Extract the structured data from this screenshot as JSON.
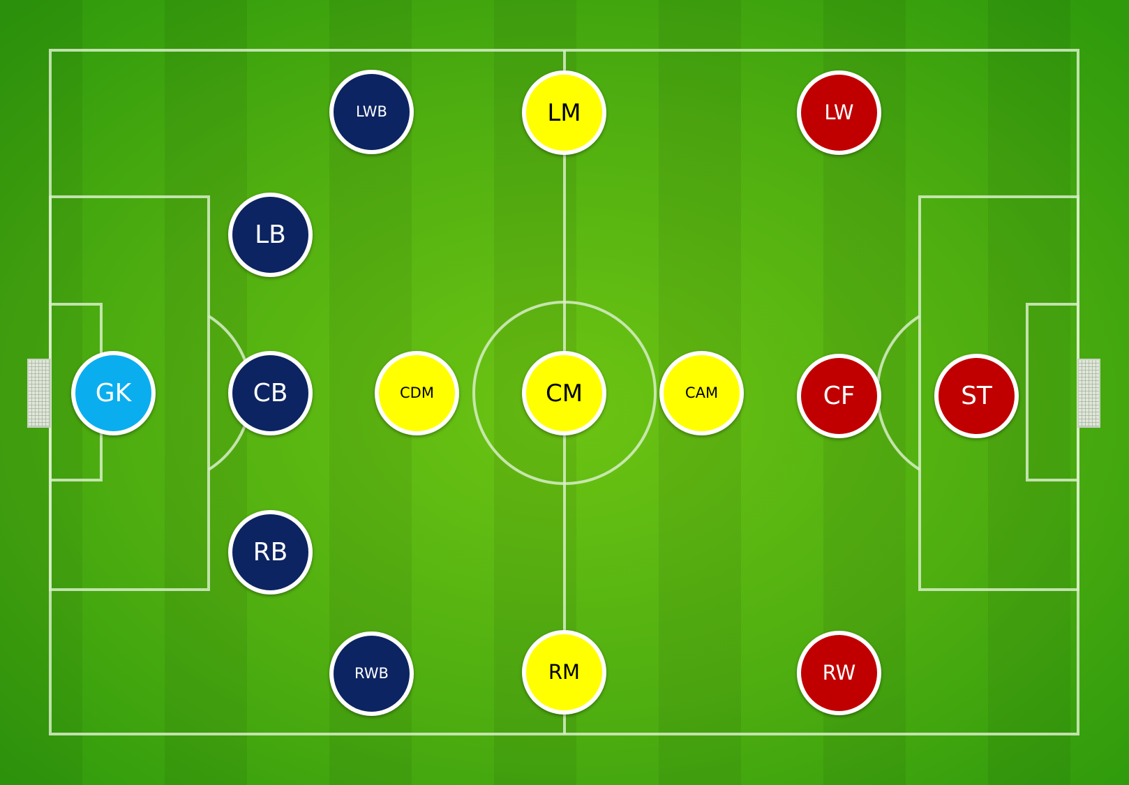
{
  "pitch": {
    "grass_light": "#6cc413",
    "grass_dark": "#2e9a0c",
    "line_color": "#d8eec8"
  },
  "team_colors": {
    "goalkeeper": "#0aaeef",
    "defence": "#0c2461",
    "midfield": "#ffff00",
    "attack": "#c00000"
  },
  "positions": [
    {
      "id": "gk",
      "label": "GK",
      "role": "goalkeeper",
      "text_color": "#ffffff"
    },
    {
      "id": "lwb",
      "label": "LWB",
      "role": "defence",
      "text_color": "#ffffff"
    },
    {
      "id": "lb",
      "label": "LB",
      "role": "defence",
      "text_color": "#ffffff"
    },
    {
      "id": "cb",
      "label": "CB",
      "role": "defence",
      "text_color": "#ffffff"
    },
    {
      "id": "rb",
      "label": "RB",
      "role": "defence",
      "text_color": "#ffffff"
    },
    {
      "id": "rwb",
      "label": "RWB",
      "role": "defence",
      "text_color": "#ffffff"
    },
    {
      "id": "lm",
      "label": "LM",
      "role": "midfield",
      "text_color": "#000000"
    },
    {
      "id": "cdm",
      "label": "CDM",
      "role": "midfield",
      "text_color": "#000000"
    },
    {
      "id": "cm",
      "label": "CM",
      "role": "midfield",
      "text_color": "#000000"
    },
    {
      "id": "cam",
      "label": "CAM",
      "role": "midfield",
      "text_color": "#000000"
    },
    {
      "id": "rm",
      "label": "RM",
      "role": "midfield",
      "text_color": "#000000"
    },
    {
      "id": "lw",
      "label": "LW",
      "role": "attack",
      "text_color": "#ffffff"
    },
    {
      "id": "cf",
      "label": "CF",
      "role": "attack",
      "text_color": "#ffffff"
    },
    {
      "id": "st",
      "label": "ST",
      "role": "attack",
      "text_color": "#ffffff"
    },
    {
      "id": "rw",
      "label": "RW",
      "role": "attack",
      "text_color": "#ffffff"
    }
  ]
}
